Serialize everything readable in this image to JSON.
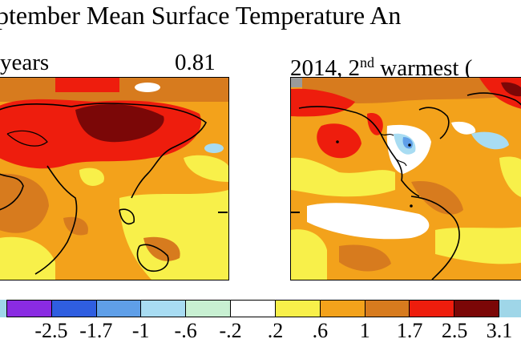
{
  "title": "ptember Mean Surface Temperature An",
  "left_panel": {
    "label": "years",
    "value": "0.81"
  },
  "right_panel": {
    "label_main": "2014, 2",
    "label_sup": "nd",
    "label_rest": " warmest ("
  },
  "colorbar": {
    "colors": [
      "#8a2be2",
      "#2f5ee0",
      "#5f9fe8",
      "#a8dcf2",
      "#c8f0d2",
      "#ffffff",
      "#f8f04a",
      "#f3a21b",
      "#d77b1e",
      "#ee1d0d",
      "#7b0707"
    ],
    "tick_labels": [
      "-2.5",
      "-1.7",
      "-1",
      "-.6",
      "-.2",
      ".2",
      ".6",
      "1",
      "1.7",
      "2.5",
      "3.1"
    ]
  },
  "map_colors": {
    "dark_red": "#7b0707",
    "red": "#ee1d0d",
    "orange": "#d77b1e",
    "light_orange": "#f3a21b",
    "yellow": "#f8f04a",
    "white": "#ffffff",
    "light_blue": "#a8dcf2",
    "blue": "#5f9fe8",
    "gray": "#9a9a9a"
  }
}
